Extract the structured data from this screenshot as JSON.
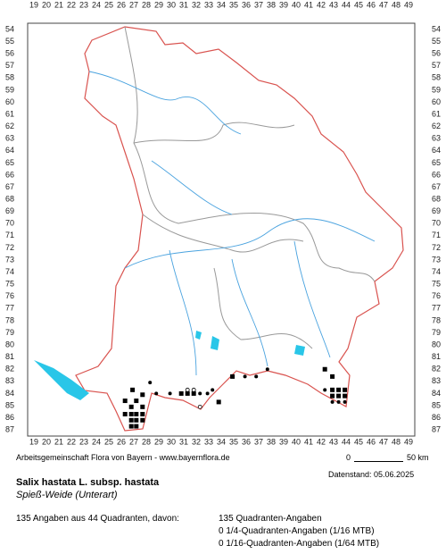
{
  "map": {
    "x_labels": [
      19,
      20,
      21,
      22,
      23,
      24,
      25,
      26,
      27,
      28,
      29,
      30,
      31,
      32,
      33,
      34,
      35,
      36,
      37,
      38,
      39,
      40,
      41,
      42,
      43,
      44,
      45,
      46,
      47,
      48,
      49
    ],
    "y_labels": [
      54,
      55,
      56,
      57,
      58,
      59,
      60,
      61,
      62,
      63,
      64,
      65,
      66,
      67,
      68,
      69,
      70,
      71,
      72,
      73,
      74,
      75,
      76,
      77,
      78,
      79,
      80,
      81,
      82,
      83,
      84,
      85,
      86,
      87
    ],
    "occurrences": [
      {
        "x": 26.9,
        "y": 83.7,
        "symbol": "square"
      },
      {
        "x": 28.3,
        "y": 83.1,
        "symbol": "dot"
      },
      {
        "x": 26.3,
        "y": 84.6,
        "symbol": "square"
      },
      {
        "x": 27.7,
        "y": 84.1,
        "symbol": "square"
      },
      {
        "x": 26.8,
        "y": 85.1,
        "symbol": "square"
      },
      {
        "x": 27.2,
        "y": 84.6,
        "symbol": "square"
      },
      {
        "x": 27.7,
        "y": 85.1,
        "symbol": "square"
      },
      {
        "x": 26.3,
        "y": 85.7,
        "symbol": "square"
      },
      {
        "x": 26.8,
        "y": 85.7,
        "symbol": "square"
      },
      {
        "x": 27.2,
        "y": 85.7,
        "symbol": "square"
      },
      {
        "x": 27.7,
        "y": 85.7,
        "symbol": "square"
      },
      {
        "x": 26.8,
        "y": 86.2,
        "symbol": "square"
      },
      {
        "x": 27.2,
        "y": 86.2,
        "symbol": "square"
      },
      {
        "x": 27.7,
        "y": 86.2,
        "symbol": "square"
      },
      {
        "x": 26.8,
        "y": 86.7,
        "symbol": "square"
      },
      {
        "x": 27.2,
        "y": 86.7,
        "symbol": "square"
      },
      {
        "x": 28.8,
        "y": 84.0,
        "symbol": "dot"
      },
      {
        "x": 29.9,
        "y": 84.0,
        "symbol": "dot"
      },
      {
        "x": 30.8,
        "y": 84.0,
        "symbol": "square"
      },
      {
        "x": 31.3,
        "y": 83.7,
        "symbol": "circle"
      },
      {
        "x": 31.3,
        "y": 84.0,
        "symbol": "square"
      },
      {
        "x": 31.8,
        "y": 84.0,
        "symbol": "square"
      },
      {
        "x": 31.8,
        "y": 83.7,
        "symbol": "circle"
      },
      {
        "x": 32.3,
        "y": 84.0,
        "symbol": "dot"
      },
      {
        "x": 32.9,
        "y": 84.0,
        "symbol": "dot"
      },
      {
        "x": 32.3,
        "y": 85.1,
        "symbol": "circle"
      },
      {
        "x": 33.8,
        "y": 84.7,
        "symbol": "square"
      },
      {
        "x": 33.3,
        "y": 83.7,
        "symbol": "dot"
      },
      {
        "x": 34.9,
        "y": 82.6,
        "symbol": "square"
      },
      {
        "x": 35.9,
        "y": 82.6,
        "symbol": "dot"
      },
      {
        "x": 36.8,
        "y": 82.6,
        "symbol": "dot"
      },
      {
        "x": 37.7,
        "y": 82.0,
        "symbol": "dot"
      },
      {
        "x": 42.3,
        "y": 82.0,
        "symbol": "square"
      },
      {
        "x": 42.9,
        "y": 82.6,
        "symbol": "square"
      },
      {
        "x": 42.3,
        "y": 83.7,
        "symbol": "dot"
      },
      {
        "x": 42.9,
        "y": 83.7,
        "symbol": "square"
      },
      {
        "x": 43.4,
        "y": 83.7,
        "symbol": "square"
      },
      {
        "x": 43.9,
        "y": 83.7,
        "symbol": "square"
      },
      {
        "x": 42.9,
        "y": 84.2,
        "symbol": "square"
      },
      {
        "x": 43.4,
        "y": 84.2,
        "symbol": "square"
      },
      {
        "x": 43.9,
        "y": 84.2,
        "symbol": "square"
      },
      {
        "x": 42.9,
        "y": 84.7,
        "symbol": "dot"
      },
      {
        "x": 43.4,
        "y": 84.7,
        "symbol": "dot"
      },
      {
        "x": 43.9,
        "y": 84.7,
        "symbol": "dot"
      }
    ],
    "source": "Arbeitsgemeinschaft Flora von Bayern - www.bayernflora.de",
    "scale_start": "0",
    "scale_end": "50 km",
    "date": "Datenstand: 05.06.2025"
  },
  "species": {
    "name": "Salix hastata L. subsp. hastata",
    "common_name": "Spieß-Weide (Unterart)"
  },
  "stats": {
    "summary": "135 Angaben aus 44 Quadranten, davon:",
    "lines": [
      "135 Quadranten-Angaben",
      "0 1/4-Quadranten-Angaben (1/16 MTB)",
      "0 1/16-Quadranten-Angaben (1/64 MTB)"
    ]
  }
}
